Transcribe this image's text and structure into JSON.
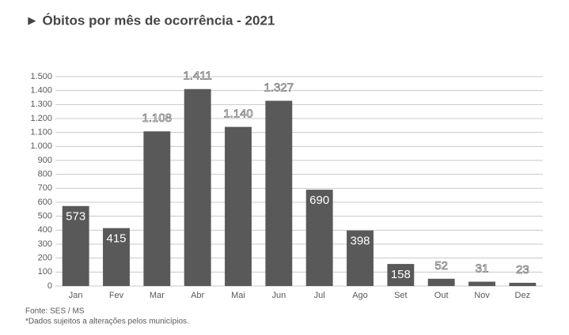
{
  "chart_data": {
    "type": "bar",
    "title": "► Óbitos por mês de ocorrência - 2021",
    "categories": [
      "Jan",
      "Fev",
      "Mar",
      "Abr",
      "Mai",
      "Jun",
      "Jul",
      "Ago",
      "Set",
      "Out",
      "Nov",
      "Dez"
    ],
    "values": [
      573,
      415,
      1108,
      1411,
      1140,
      1327,
      690,
      398,
      158,
      52,
      31,
      23
    ],
    "value_labels": [
      "573",
      "415",
      "1.108",
      "1.411",
      "1.140",
      "1.327",
      "690",
      "398",
      "158",
      "52",
      "31",
      "23"
    ],
    "color": "#595959",
    "ylim": [
      0,
      1500
    ],
    "yticks": [
      0,
      100,
      200,
      300,
      400,
      500,
      600,
      700,
      800,
      900,
      {
        "value": 1000,
        "label": "1.000"
      },
      {
        "value": 1100,
        "label": "1.100"
      },
      {
        "value": 1200,
        "label": "1.200"
      },
      {
        "value": 1300,
        "label": "1.300"
      },
      {
        "value": 1400,
        "label": "1.400"
      },
      {
        "value": 1500,
        "label": "1.500"
      }
    ],
    "grid": true,
    "source": "Fonte: SES / MS",
    "note": "*Dados sujeitos a alterações pelos municípios."
  }
}
